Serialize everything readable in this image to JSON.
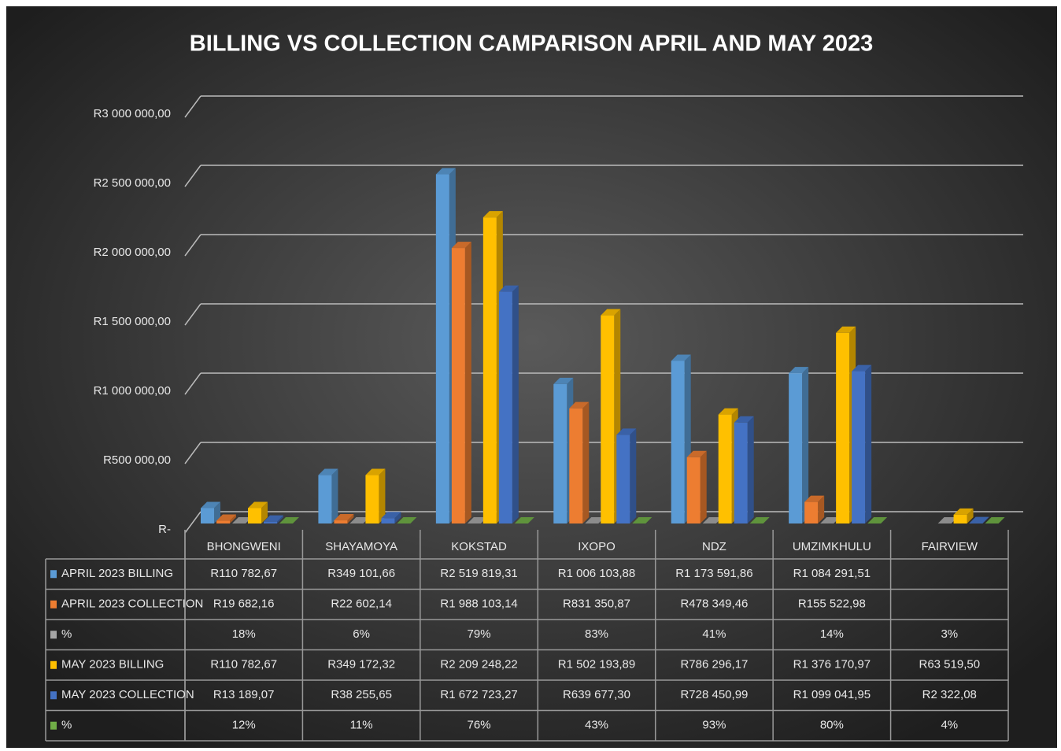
{
  "chart_data": {
    "type": "bar",
    "title": "BILLING VS COLLECTION CAMPARISON APRIL AND MAY 2023",
    "categories": [
      "BHONGWENI",
      "SHAYAMOYA",
      "KOKSTAD",
      "IXOPO",
      "NDZ",
      "UMZIMKHULU",
      "FAIRVIEW"
    ],
    "ylim": [
      0,
      3000000
    ],
    "yticks": [
      {
        "value": 0,
        "label": "R-"
      },
      {
        "value": 500000,
        "label": "R500 000,00"
      },
      {
        "value": 1000000,
        "label": "R1 000 000,00"
      },
      {
        "value": 1500000,
        "label": "R1 500 000,00"
      },
      {
        "value": 2000000,
        "label": "R2 000 000,00"
      },
      {
        "value": 2500000,
        "label": "R2 500 000,00"
      },
      {
        "value": 3000000,
        "label": "R3 000 000,00"
      }
    ],
    "grid": true,
    "series": [
      {
        "name": "APRIL 2023 BILLING",
        "color": "#5b9bd5",
        "values": [
          110782.67,
          349101.66,
          2519819.31,
          1006103.88,
          1173591.86,
          1084291.51,
          null
        ],
        "value_labels": [
          "R110 782,67",
          "R349 101,66",
          "R2 519 819,31",
          "R1 006 103,88",
          "R1 173 591,86",
          "R1 084 291,51",
          null
        ]
      },
      {
        "name": "APRIL 2023 COLLECTION",
        "color": "#ed7d31",
        "values": [
          19682.16,
          22602.14,
          1988103.14,
          831350.87,
          478349.46,
          155522.98,
          null
        ],
        "value_labels": [
          "R19 682,16",
          "R22 602,14",
          "R1 988 103,14",
          "R831 350,87",
          "R478 349,46",
          "R155 522,98",
          null
        ]
      },
      {
        "name": "%",
        "color": "#a5a5a5",
        "values": [
          18,
          6,
          79,
          83,
          41,
          14,
          3
        ],
        "value_labels": [
          "18%",
          "6%",
          "79%",
          "83%",
          "41%",
          "14%",
          "3%"
        ]
      },
      {
        "name": "MAY 2023 BILLING",
        "color": "#ffc000",
        "values": [
          110782.67,
          349172.32,
          2209248.22,
          1502193.89,
          786296.17,
          1376170.97,
          63519.5
        ],
        "value_labels": [
          "R110 782,67",
          "R349 172,32",
          "R2 209 248,22",
          "R1 502 193,89",
          "R786 296,17",
          "R1 376 170,97",
          "R63 519,50"
        ]
      },
      {
        "name": "MAY 2023 COLLECTION",
        "color": "#4472c4",
        "values": [
          13189.07,
          38255.65,
          1672723.27,
          639677.3,
          728450.99,
          1099041.95,
          2322.08
        ],
        "value_labels": [
          "R13 189,07",
          "R38 255,65",
          "R1 672 723,27",
          "R639 677,30",
          "R728 450,99",
          "R1 099 041,95",
          "R2 322,08"
        ]
      },
      {
        "name": "%",
        "color": "#70ad47",
        "values": [
          12,
          11,
          76,
          43,
          93,
          80,
          4
        ],
        "value_labels": [
          "12%",
          "11%",
          "76%",
          "43%",
          "93%",
          "80%",
          "4%"
        ]
      }
    ]
  }
}
